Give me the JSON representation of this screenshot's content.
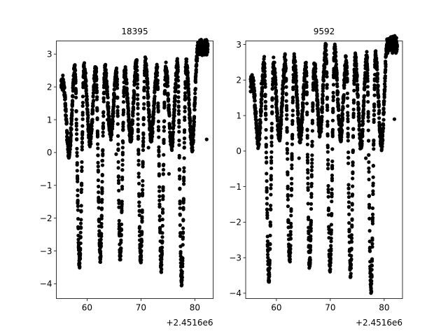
{
  "chart_data": [
    {
      "type": "scatter",
      "title": "18395",
      "xlabel": "",
      "ylabel": "",
      "x_offset_text": "+2.4516e6",
      "xlim": [
        54.3,
        83.4
      ],
      "ylim": [
        -4.45,
        3.4
      ],
      "xticks": [
        60,
        70,
        80
      ],
      "yticks": [
        -4,
        -3,
        -2,
        -1,
        0,
        1,
        2,
        3
      ],
      "grid": false,
      "legend": "none",
      "marker_color": "#000000",
      "x_start": 55.2,
      "x_end": 82.4,
      "period": 3.89,
      "min_times": [
        58.6,
        62.45,
        66.15,
        69.95,
        73.75,
        77.55
      ],
      "min_values": [
        -3.4,
        -3.2,
        -3.3,
        -3.4,
        -3.6,
        -4.1
      ],
      "secondary_min_values": [
        0.0,
        0.35,
        0.5,
        0.4,
        0.35,
        0.1,
        0.05
      ],
      "max_values": [
        2.1,
        2.5,
        2.45,
        2.35,
        2.6,
        2.35,
        2.45,
        3.0
      ],
      "trend": 0.008,
      "outliers": [
        {
          "x": 62.8,
          "y": -0.25
        },
        {
          "x": 63.8,
          "y": 1.0
        },
        {
          "x": 65.4,
          "y": -0.05
        },
        {
          "x": 71.4,
          "y": 0.15
        },
        {
          "x": 75.2,
          "y": -0.65
        },
        {
          "x": 82.2,
          "y": 0.4
        }
      ]
    },
    {
      "type": "scatter",
      "title": "9592",
      "xlabel": "",
      "ylabel": "",
      "x_offset_text": "+2.4516e6",
      "xlim": [
        54.3,
        83.4
      ],
      "ylim": [
        -4.15,
        3.1
      ],
      "xticks": [
        60,
        70,
        80
      ],
      "yticks": [
        -4,
        -3,
        -2,
        -1,
        0,
        1,
        2,
        3
      ],
      "grid": false,
      "legend": "none",
      "marker_color": "#000000",
      "x_start": 55.2,
      "x_end": 82.4,
      "period": 3.89,
      "min_times": [
        58.6,
        62.45,
        66.15,
        69.95,
        73.75,
        77.55
      ],
      "min_values": [
        -3.6,
        -3.1,
        -3.3,
        -3.4,
        -3.5,
        -4.0
      ],
      "secondary_min_values": [
        0.3,
        0.4,
        0.35,
        0.5,
        0.35,
        0.1,
        0.05
      ],
      "max_values": [
        1.9,
        2.4,
        2.45,
        2.3,
        2.75,
        2.45,
        2.5,
        2.85
      ],
      "trend": 0.006,
      "outliers": [
        {
          "x": 57.2,
          "y": 1.9
        },
        {
          "x": 64.2,
          "y": -0.2
        },
        {
          "x": 76.6,
          "y": -0.2
        },
        {
          "x": 81.9,
          "y": 0.9
        }
      ]
    }
  ]
}
